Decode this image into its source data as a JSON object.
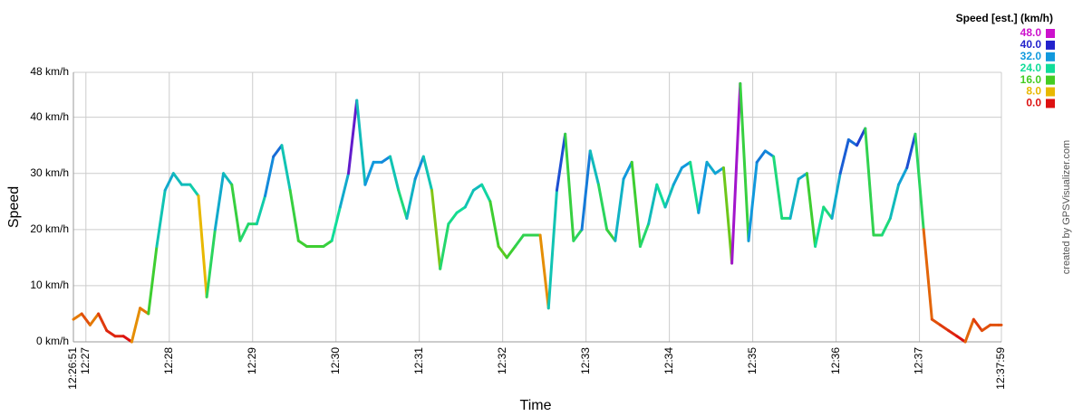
{
  "chart_data": {
    "type": "line",
    "xlabel": "Time",
    "ylabel": "Speed",
    "credit": "created by GPSVisualizer.com",
    "x": [
      "12:26:51",
      "12:26:57",
      "12:27:03",
      "12:27:09",
      "12:27:15",
      "12:27:21",
      "12:27:27",
      "12:27:33",
      "12:27:39",
      "12:27:45",
      "12:27:51",
      "12:27:57",
      "12:28:03",
      "12:28:09",
      "12:28:15",
      "12:28:21",
      "12:28:27",
      "12:28:33",
      "12:28:39",
      "12:28:45",
      "12:28:51",
      "12:28:57",
      "12:29:03",
      "12:29:09",
      "12:29:15",
      "12:29:21",
      "12:29:27",
      "12:29:33",
      "12:29:39",
      "12:29:45",
      "12:29:51",
      "12:29:57",
      "12:30:03",
      "12:30:09",
      "12:30:15",
      "12:30:21",
      "12:30:27",
      "12:30:33",
      "12:30:39",
      "12:30:45",
      "12:30:51",
      "12:30:57",
      "12:31:03",
      "12:31:09",
      "12:31:15",
      "12:31:21",
      "12:31:27",
      "12:31:33",
      "12:31:39",
      "12:31:45",
      "12:31:51",
      "12:31:57",
      "12:32:03",
      "12:32:09",
      "12:32:15",
      "12:32:21",
      "12:32:27",
      "12:32:33",
      "12:32:39",
      "12:32:45",
      "12:32:51",
      "12:32:57",
      "12:33:03",
      "12:33:09",
      "12:33:15",
      "12:33:21",
      "12:33:27",
      "12:33:33",
      "12:33:39",
      "12:33:45",
      "12:33:51",
      "12:33:57",
      "12:34:03",
      "12:34:09",
      "12:34:15",
      "12:34:21",
      "12:34:27",
      "12:34:33",
      "12:34:39",
      "12:34:45",
      "12:34:51",
      "12:34:57",
      "12:35:03",
      "12:35:09",
      "12:35:15",
      "12:35:21",
      "12:35:27",
      "12:35:33",
      "12:35:39",
      "12:35:45",
      "12:35:51",
      "12:35:57",
      "12:36:03",
      "12:36:09",
      "12:36:15",
      "12:36:21",
      "12:36:27",
      "12:36:33",
      "12:36:39",
      "12:36:45",
      "12:36:51",
      "12:36:57",
      "12:37:03",
      "12:37:09",
      "12:37:15",
      "12:37:21",
      "12:37:27",
      "12:37:33",
      "12:37:39",
      "12:37:45",
      "12:37:51",
      "12:37:57",
      "12:37:59"
    ],
    "values": [
      4,
      5,
      3,
      5,
      2,
      1,
      1,
      0,
      6,
      5,
      17,
      27,
      30,
      28,
      28,
      26,
      8,
      20,
      30,
      28,
      18,
      21,
      21,
      26,
      33,
      35,
      27,
      18,
      17,
      17,
      17,
      18,
      24,
      30,
      43,
      28,
      32,
      32,
      33,
      27,
      22,
      29,
      33,
      27,
      13,
      21,
      23,
      24,
      27,
      28,
      25,
      17,
      15,
      17,
      19,
      19,
      19,
      6,
      27,
      37,
      18,
      20,
      34,
      28,
      20,
      18,
      29,
      32,
      17,
      21,
      28,
      24,
      28,
      31,
      32,
      23,
      32,
      30,
      31,
      14,
      46,
      18,
      32,
      34,
      33,
      22,
      22,
      29,
      30,
      17,
      24,
      22,
      30,
      36,
      35,
      38,
      19,
      19,
      22,
      28,
      31,
      37,
      20,
      4,
      3,
      2,
      1,
      0,
      4,
      2,
      3,
      3,
      3
    ],
    "xlim": [
      "12:26:51",
      "12:37:59"
    ],
    "xticks": [
      "12:26:51",
      "12:27",
      "12:28",
      "12:29",
      "12:30",
      "12:31",
      "12:32",
      "12:33",
      "12:34",
      "12:35",
      "12:36",
      "12:37",
      "12:37:59"
    ],
    "ylim": [
      0,
      48
    ],
    "yticks": [
      {
        "value": 0,
        "label": "0 km/h"
      },
      {
        "value": 10,
        "label": "10 km/h"
      },
      {
        "value": 20,
        "label": "20 km/h"
      },
      {
        "value": 30,
        "label": "30 km/h"
      },
      {
        "value": 40,
        "label": "40 km/h"
      },
      {
        "value": 48,
        "label": "48 km/h"
      }
    ],
    "grid": true,
    "color_scale": {
      "title": "Speed [est.] (km/h)",
      "stops": [
        {
          "value": 48,
          "label": "48.0",
          "color": "#cc11cc"
        },
        {
          "value": 40,
          "label": "40.0",
          "color": "#2222cc"
        },
        {
          "value": 32,
          "label": "32.0",
          "color": "#1199dd"
        },
        {
          "value": 24,
          "label": "24.0",
          "color": "#11dd99"
        },
        {
          "value": 16,
          "label": "16.0",
          "color": "#44cc22"
        },
        {
          "value": 8,
          "label": "8.0",
          "color": "#e8b800"
        },
        {
          "value": 0,
          "label": "0.0",
          "color": "#dd1111"
        }
      ]
    }
  }
}
